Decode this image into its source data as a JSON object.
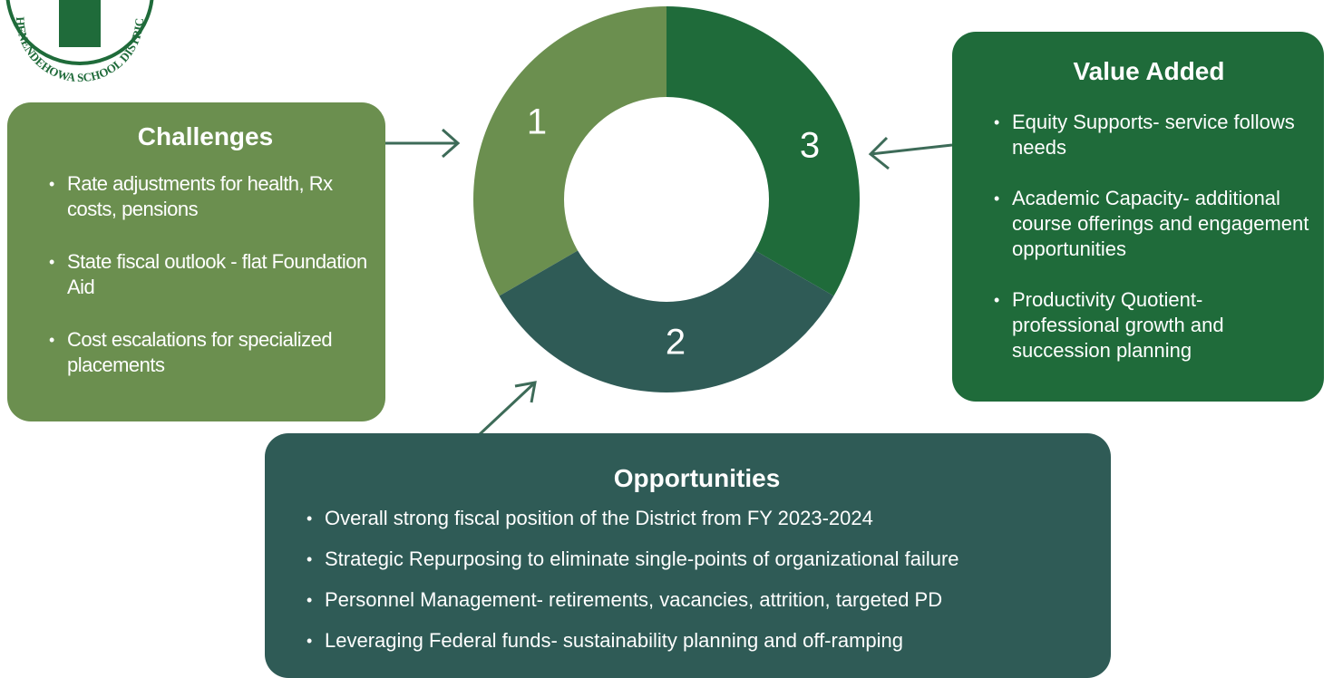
{
  "logo": {
    "text": "SHENENDEHOWA SCHOOL DISTRICT"
  },
  "cycle": {
    "segments": [
      "1",
      "3",
      "2"
    ]
  },
  "challenges": {
    "title": "Challenges",
    "items": [
      "Rate adjustments for health, Rx costs, pensions",
      "State fiscal outlook - flat Foundation Aid",
      "Cost escalations for specialized placements"
    ]
  },
  "value_added": {
    "title": "Value Added",
    "items": [
      "Equity Supports- service follows needs",
      "Academic Capacity- additional course offerings and engagement opportunities",
      "Productivity Quotient- professional growth and succession planning"
    ]
  },
  "opportunities": {
    "title": "Opportunities",
    "items": [
      "Overall strong fiscal position of the District from FY 2023-2024",
      "Strategic Repurposing to eliminate single-points of organizational failure",
      "Personnel Management- retirements, vacancies, attrition, targeted PD",
      "Leveraging Federal funds- sustainability planning and off-ramping"
    ]
  }
}
